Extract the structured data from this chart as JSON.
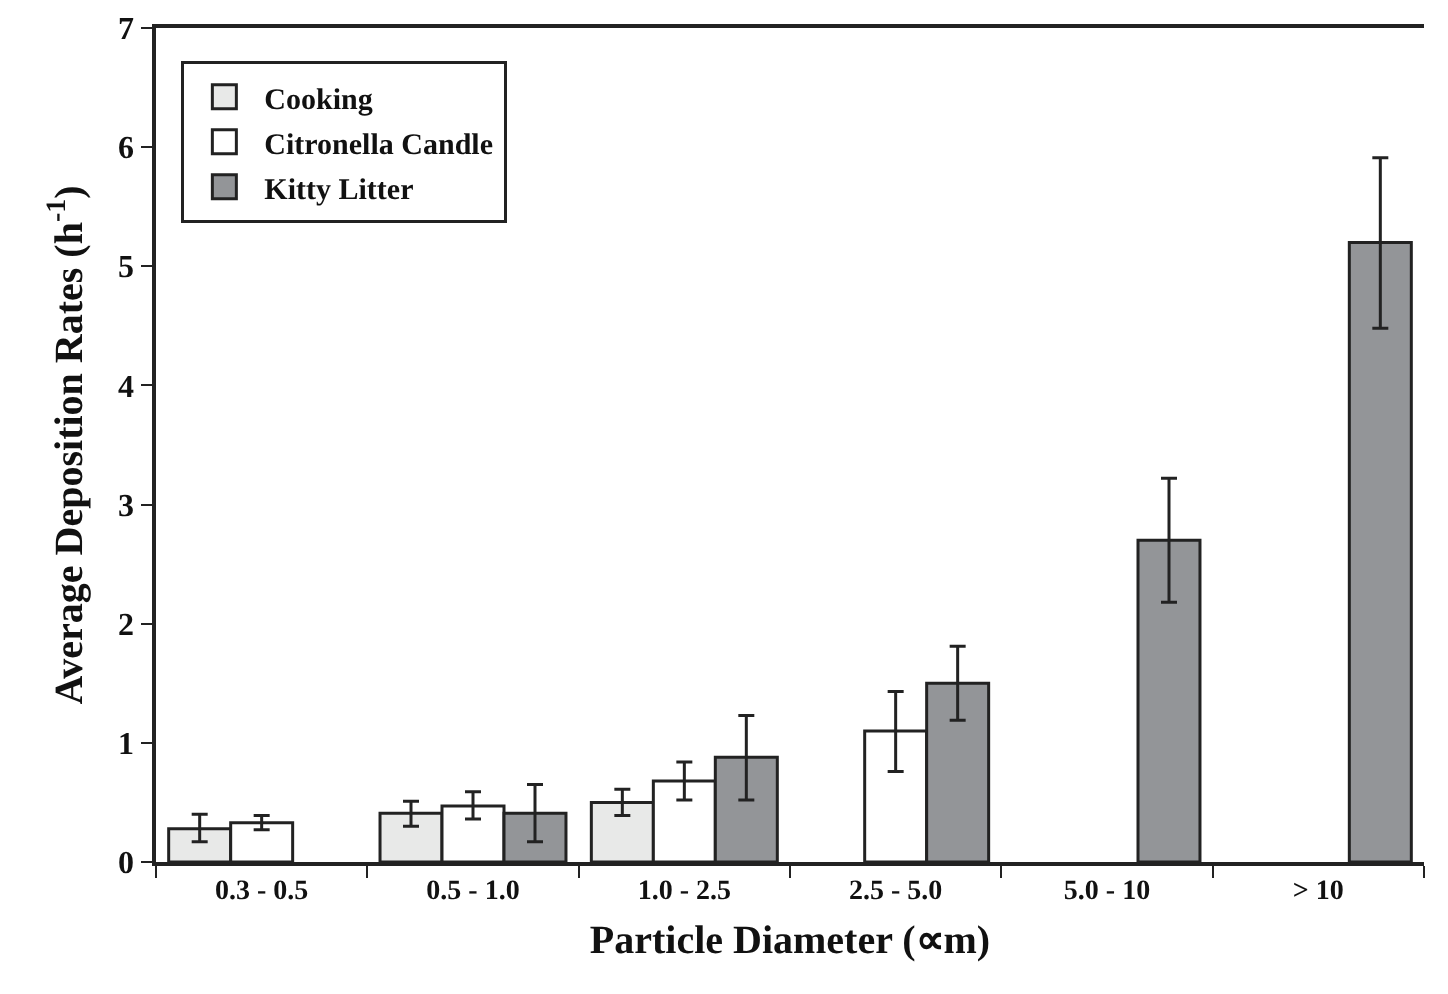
{
  "chart_data": {
    "type": "bar",
    "xlabel": "Particle Diameter (∝m)",
    "ylabel": "Average Deposition Rates (h$^{-1}$)",
    "categories": [
      "0.3 - 0.5",
      "0.5 - 1.0",
      "1.0 - 2.5",
      "2.5 - 5.0",
      "5.0 - 10",
      "> 10"
    ],
    "series": [
      {
        "name": "Cooking",
        "color": "#e8e9e8",
        "values": [
          0.28,
          0.41,
          0.5,
          null,
          null,
          null
        ],
        "errors": [
          [
            0.17,
            0.4
          ],
          [
            0.3,
            0.51
          ],
          [
            0.39,
            0.61
          ],
          null,
          null,
          null
        ]
      },
      {
        "name": "Citronella Candle",
        "color": "#ffffff",
        "values": [
          0.33,
          0.47,
          0.68,
          1.1,
          null,
          null
        ],
        "errors": [
          [
            0.27,
            0.39
          ],
          [
            0.36,
            0.59
          ],
          [
            0.52,
            0.84
          ],
          [
            0.76,
            1.43
          ],
          null,
          null
        ]
      },
      {
        "name": "Kitty Litter",
        "color": "#939598",
        "values": [
          null,
          0.41,
          0.88,
          1.5,
          2.7,
          5.2
        ],
        "errors": [
          null,
          [
            0.17,
            0.65
          ],
          [
            0.52,
            1.23
          ],
          [
            1.19,
            1.81
          ],
          [
            2.18,
            3.22
          ],
          [
            4.48,
            5.91
          ]
        ]
      }
    ],
    "ylim": [
      0,
      7
    ],
    "yticks": [
      0,
      1,
      2,
      3,
      4,
      5,
      6,
      7
    ],
    "grid": false,
    "legend": "top left"
  }
}
